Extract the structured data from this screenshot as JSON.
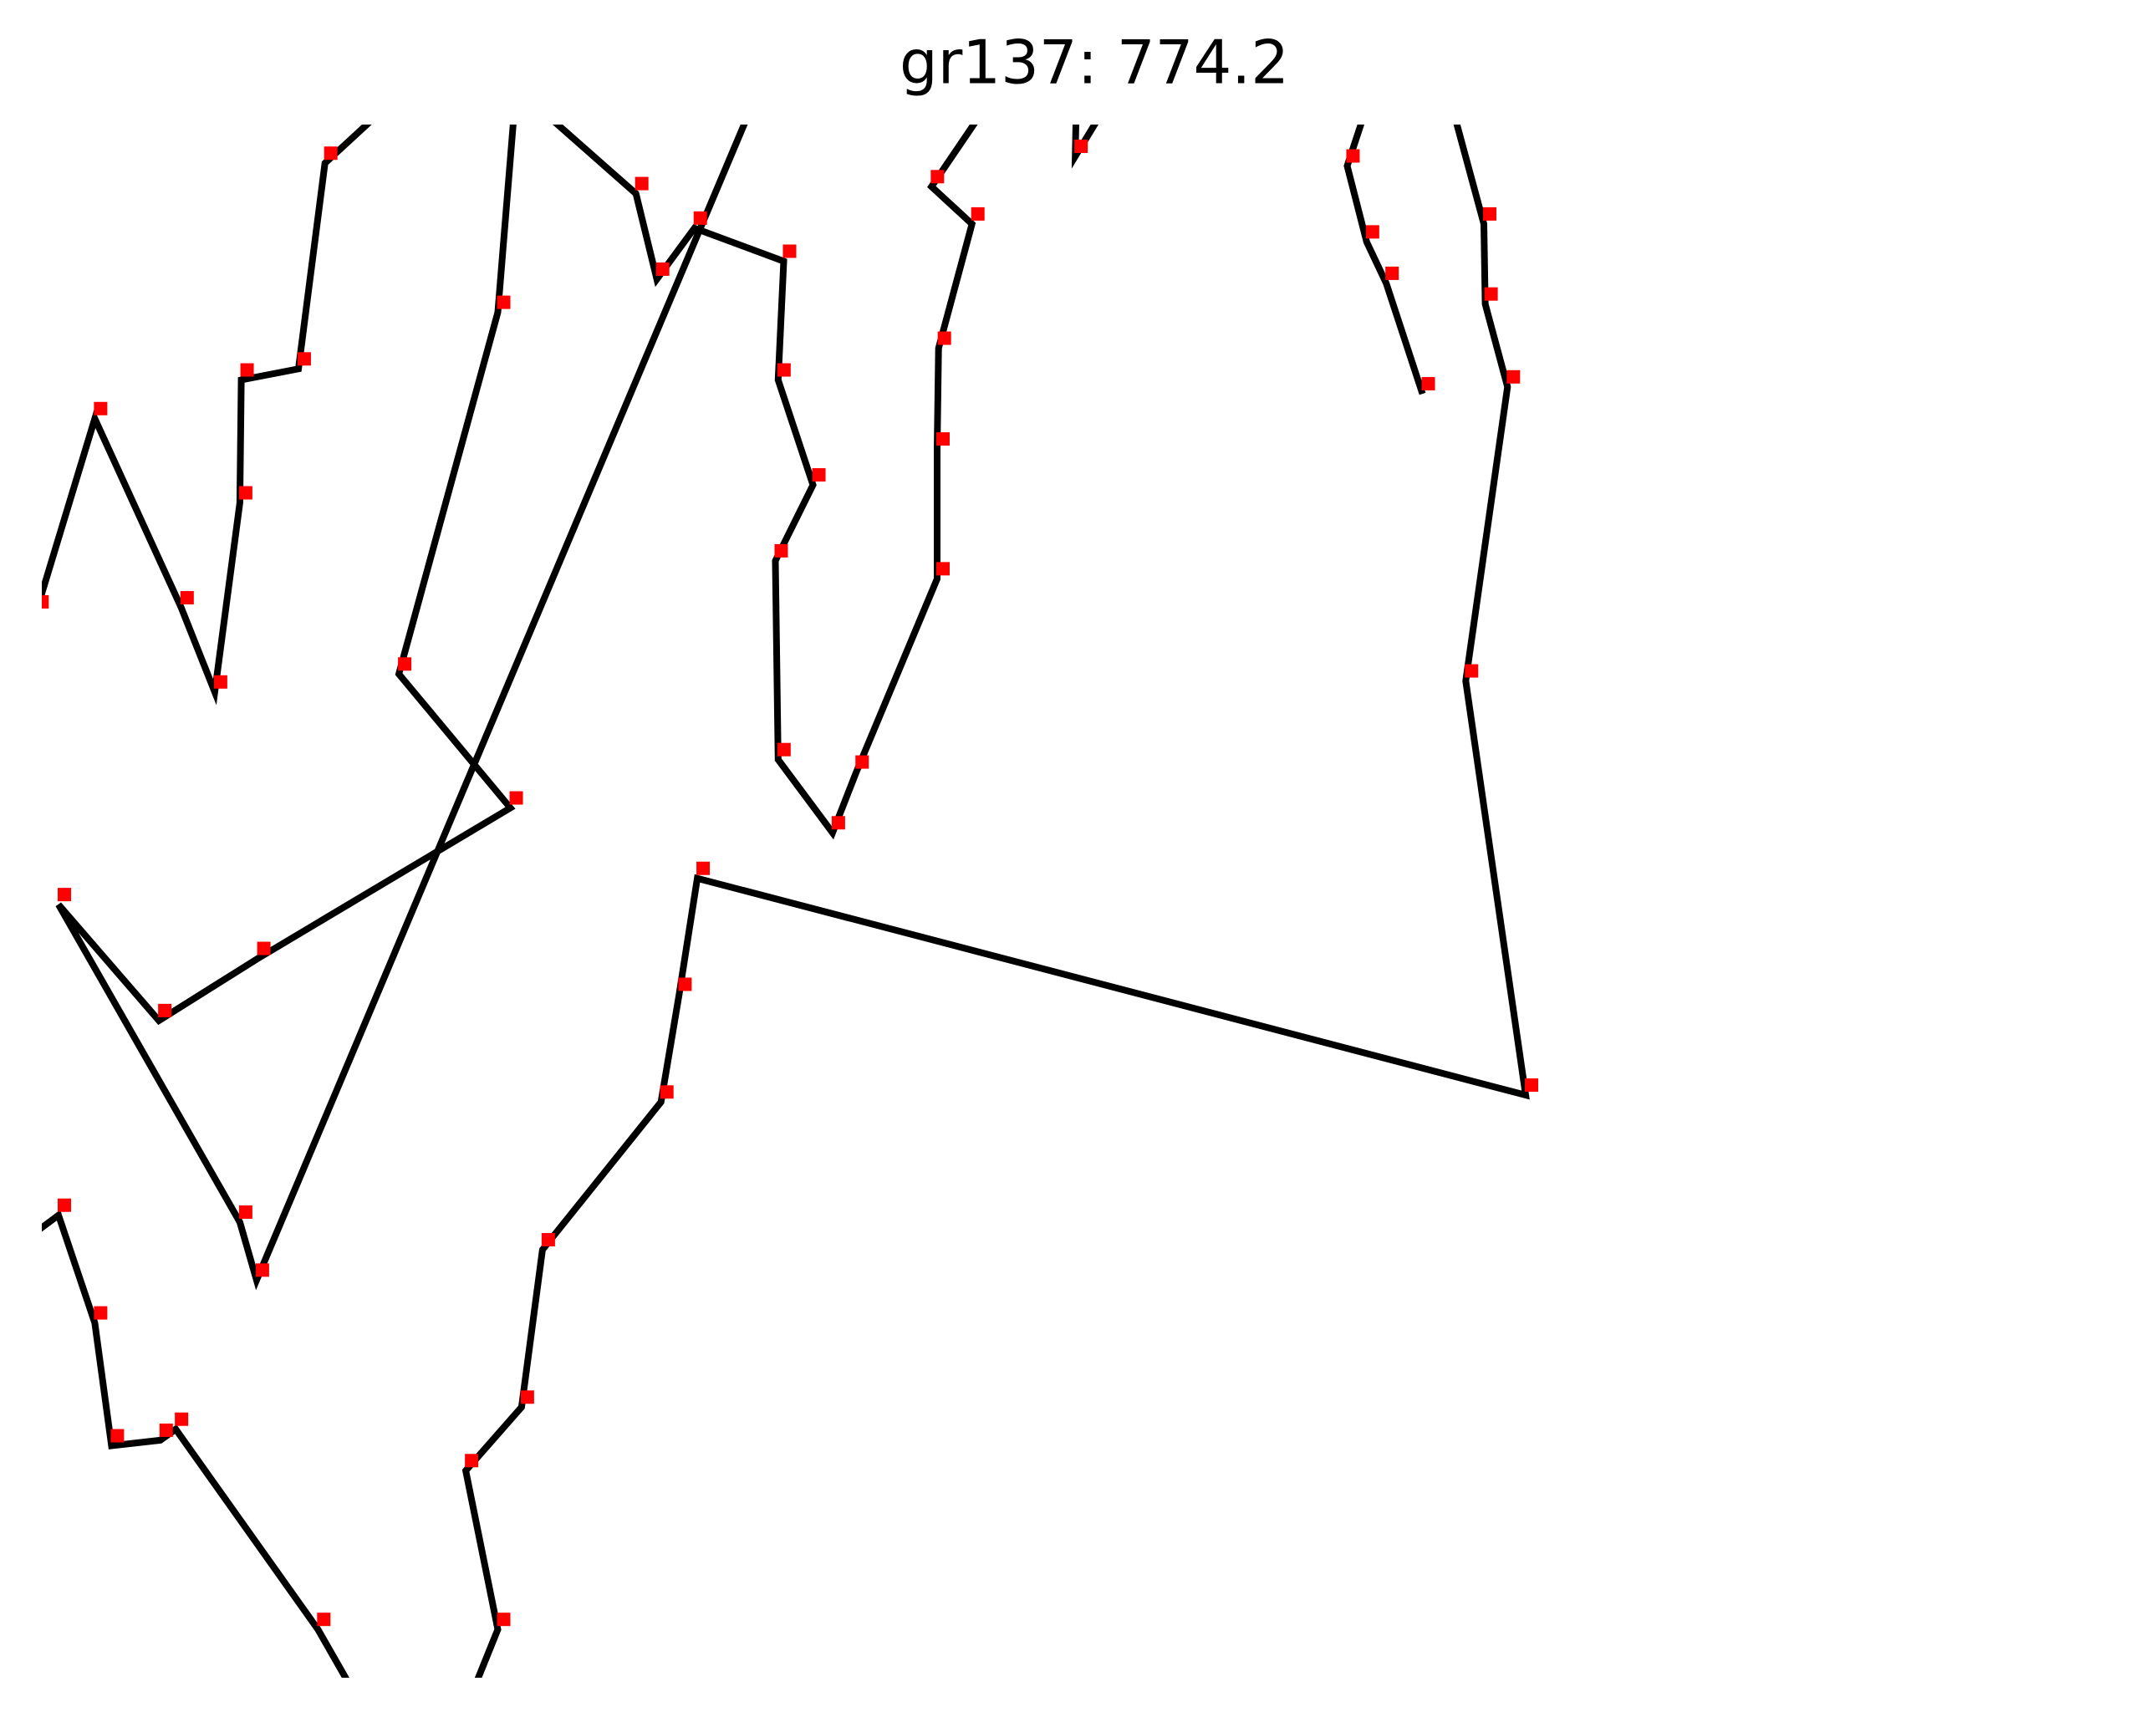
{
  "chart_data": {
    "type": "line",
    "title": "gr137: 774.2",
    "x": [
      262,
      228,
      126,
      115,
      80,
      68,
      42,
      10,
      null,
      333,
      357,
      334,
      374,
      389,
      474,
      487,
      500,
      1094,
      1051,
      1081,
      1065,
      1064,
      1038,
      null,
      26,
      68,
      130,
      154,
      172,
      173,
      214,
      233,
      290,
      null,
      370,
      357,
      286,
      366,
      185,
      114,
      42,
      172,
      184,
      544,
      null,
      392,
      456,
      471,
      498,
      562,
      558,
      583,
      556,
      558,
      597,
      614,
      672,
      672,
      673,
      697,
      668,
      715,
      null,
      772,
      771,
      800,
      null,
      984,
      966,
      980,
      994,
      1020
    ],
    "series": [
      {
        "color": "#000000",
        "marker_color": "#ff0000",
        "values": [
          65,
          125,
          270,
          262,
          258,
          347,
          425,
          401,
          null,
          65,
          125,
          240,
          286,
          400,
          507,
          585,
          669,
          512,
          812,
          1025,
          1085,
          1143,
          1240,
          null,
          862,
          1002,
          865,
          804,
          941,
          1030,
          1038,
          1187,
          1240,
          null,
          1240,
          1079,
          817,
          720,
          611,
          566,
          650,
          420,
          378,
          1240,
          null,
          1222,
          1165,
          1103,
          1140,
          1116,
          1030,
          954,
          899,
          755,
          702,
          746,
          886,
          980,
          1053,
          1143,
          1170,
          1240,
          null,
          1240,
          1192,
          1240,
          null,
          1240,
          1185,
          1130,
          1100,
          1020
        ]
      }
    ],
    "xlim": [
      30,
      1516
    ],
    "ylim": [
      1215,
      90
    ]
  }
}
